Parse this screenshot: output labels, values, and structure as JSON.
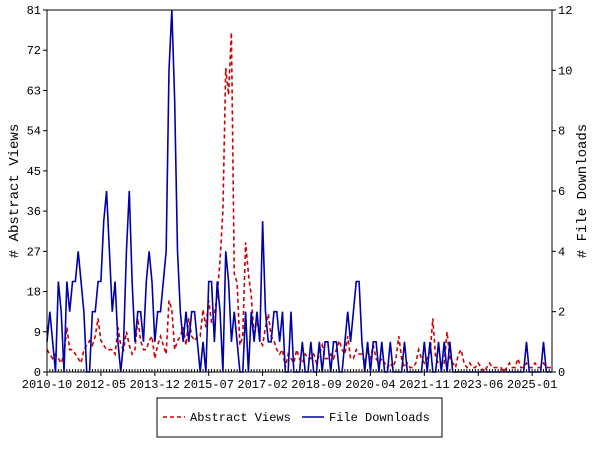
{
  "chart_data": {
    "type": "line",
    "y_label": "# Abstract Views",
    "y2_label": "# File Downloads",
    "x": [
      "2010-10",
      "2010-11",
      "2010-12",
      "2011-01",
      "2011-02",
      "2011-03",
      "2011-04",
      "2011-05",
      "2011-06",
      "2011-07",
      "2011-08",
      "2011-09",
      "2011-10",
      "2011-11",
      "2011-12",
      "2012-01",
      "2012-02",
      "2012-03",
      "2012-04",
      "2012-05",
      "2012-06",
      "2012-07",
      "2012-08",
      "2012-09",
      "2012-10",
      "2012-11",
      "2012-12",
      "2013-01",
      "2013-02",
      "2013-03",
      "2013-04",
      "2013-05",
      "2013-06",
      "2013-07",
      "2013-08",
      "2013-09",
      "2013-10",
      "2013-11",
      "2013-12",
      "2014-01",
      "2014-02",
      "2014-03",
      "2014-04",
      "2014-05",
      "2014-06",
      "2014-07",
      "2014-08",
      "2014-09",
      "2014-10",
      "2014-11",
      "2014-12",
      "2015-01",
      "2015-02",
      "2015-03",
      "2015-04",
      "2015-05",
      "2015-06",
      "2015-07",
      "2015-08",
      "2015-09",
      "2015-10",
      "2015-11",
      "2015-12",
      "2016-01",
      "2016-02",
      "2016-03",
      "2016-04",
      "2016-05",
      "2016-06",
      "2016-07",
      "2016-08",
      "2016-09",
      "2016-10",
      "2016-11",
      "2016-12",
      "2017-01",
      "2017-02",
      "2017-03",
      "2017-04",
      "2017-05",
      "2017-06",
      "2017-07",
      "2017-08",
      "2017-09",
      "2017-10",
      "2017-11",
      "2017-12",
      "2018-01",
      "2018-02",
      "2018-03",
      "2018-04",
      "2018-05",
      "2018-06",
      "2018-07",
      "2018-08",
      "2018-09",
      "2018-10",
      "2018-11",
      "2018-12",
      "2019-01",
      "2019-02",
      "2019-03",
      "2019-04",
      "2019-05",
      "2019-06",
      "2019-07",
      "2019-08",
      "2019-09",
      "2019-10",
      "2019-11",
      "2019-12",
      "2020-01",
      "2020-02",
      "2020-03",
      "2020-04",
      "2020-05",
      "2020-06",
      "2020-07",
      "2020-08",
      "2020-09",
      "2020-10",
      "2020-11",
      "2020-12",
      "2021-01",
      "2021-02",
      "2021-03",
      "2021-04",
      "2021-05",
      "2021-06",
      "2021-07",
      "2021-08",
      "2021-09",
      "2021-10",
      "2021-11",
      "2021-12",
      "2022-01",
      "2022-02",
      "2022-03",
      "2022-04",
      "2022-05",
      "2022-06",
      "2022-07",
      "2022-08",
      "2022-09",
      "2022-10",
      "2022-11",
      "2022-12",
      "2023-01",
      "2023-02",
      "2023-03",
      "2023-04",
      "2023-05",
      "2023-06",
      "2023-07",
      "2023-08",
      "2023-09",
      "2023-10",
      "2023-11",
      "2023-12",
      "2024-01",
      "2024-02",
      "2024-03",
      "2024-04",
      "2024-05",
      "2024-06",
      "2024-07",
      "2024-08",
      "2024-09",
      "2024-10",
      "2024-11",
      "2024-12",
      "2025-01",
      "2025-02",
      "2025-03",
      "2025-04",
      "2025-05",
      "2025-06",
      "2025-07",
      "2025-08"
    ],
    "xticks": [
      "2010-10",
      "2012-05",
      "2013-12",
      "2015-07",
      "2017-02",
      "2018-09",
      "2020-04",
      "2021-11",
      "2023-06",
      "2025-01"
    ],
    "ylim": [
      0,
      81
    ],
    "yticks": [
      0,
      9,
      18,
      27,
      36,
      45,
      54,
      63,
      72,
      81
    ],
    "y2lim": [
      0,
      12
    ],
    "y2ticks": [
      0,
      2,
      4,
      6,
      8,
      10,
      12
    ],
    "series": [
      {
        "name": "Abstract Views",
        "color": "#cc0000",
        "dash": "dashed",
        "values": [
          5,
          4,
          3,
          4,
          3,
          2,
          4,
          10,
          5,
          5,
          4,
          3,
          2,
          5,
          6,
          7,
          6,
          8,
          12,
          7,
          6,
          5,
          5,
          5,
          4,
          10,
          6,
          5,
          9,
          6,
          4,
          5,
          12,
          7,
          5,
          5,
          7,
          8,
          3,
          6,
          8,
          6,
          4,
          16,
          14,
          5,
          7,
          8,
          10,
          6,
          12,
          8,
          7,
          8,
          8,
          14,
          10,
          16,
          11,
          13,
          17,
          25,
          36,
          68,
          62,
          76,
          22,
          20,
          6,
          8,
          29,
          22,
          17,
          8,
          12,
          7,
          6,
          10,
          13,
          8,
          7,
          5,
          4,
          5,
          1,
          4,
          3,
          2,
          5,
          3,
          2,
          4,
          3,
          3,
          4,
          2,
          4,
          6,
          3,
          3,
          4,
          3,
          5,
          7,
          5,
          4,
          8,
          3,
          3,
          5,
          4,
          4,
          2,
          5,
          3,
          6,
          3,
          2,
          3,
          2,
          1,
          2,
          1,
          3,
          8,
          3,
          1,
          2,
          1,
          1,
          2,
          5,
          3,
          2,
          3,
          4,
          12,
          3,
          2,
          1,
          2,
          9,
          3,
          2,
          1,
          4,
          5,
          2,
          1,
          2,
          1,
          1,
          2,
          1,
          0,
          1,
          2,
          1,
          1,
          1,
          1,
          0,
          1,
          2,
          1,
          1,
          3,
          1,
          1,
          2,
          1,
          1,
          2,
          1,
          1,
          2,
          1,
          1,
          1
        ]
      },
      {
        "name": "File Downloads",
        "color": "#0000aa",
        "dash": "solid",
        "axis": "y2",
        "values": [
          1,
          2,
          1,
          0,
          3,
          2,
          0,
          3,
          2,
          3,
          3,
          4,
          3,
          2,
          0,
          0,
          2,
          2,
          3,
          3,
          5,
          6,
          4,
          2,
          3,
          1,
          0,
          1,
          4,
          6,
          3,
          1,
          2,
          2,
          1,
          3,
          4,
          3,
          1,
          2,
          2,
          3,
          4,
          10,
          12,
          9,
          4,
          2,
          1,
          2,
          1,
          2,
          2,
          1,
          0,
          1,
          0,
          3,
          3,
          1,
          3,
          2,
          0,
          4,
          3,
          1,
          2,
          1,
          0,
          0,
          2,
          0,
          2,
          1,
          2,
          1,
          5,
          2,
          1,
          1,
          2,
          2,
          1,
          2,
          0,
          0,
          2,
          0,
          0,
          0,
          1,
          0,
          0,
          1,
          0,
          0,
          1,
          0,
          1,
          1,
          0,
          1,
          1,
          0,
          0,
          1,
          2,
          1,
          2,
          3,
          3,
          1,
          0,
          1,
          0,
          1,
          1,
          0,
          1,
          0,
          0,
          1,
          0,
          0,
          0,
          0,
          1,
          0,
          0,
          0,
          0,
          0,
          0,
          1,
          0,
          1,
          0,
          0,
          1,
          0,
          1,
          0,
          1,
          0,
          0,
          0,
          0,
          0,
          0,
          0,
          0,
          0,
          0,
          0,
          0,
          0,
          0,
          0,
          0,
          0,
          0,
          0,
          0,
          0,
          0,
          0,
          0,
          0,
          0,
          1,
          0,
          0,
          0,
          0,
          0,
          1,
          0,
          0,
          0
        ]
      }
    ],
    "legend": "bottom"
  }
}
